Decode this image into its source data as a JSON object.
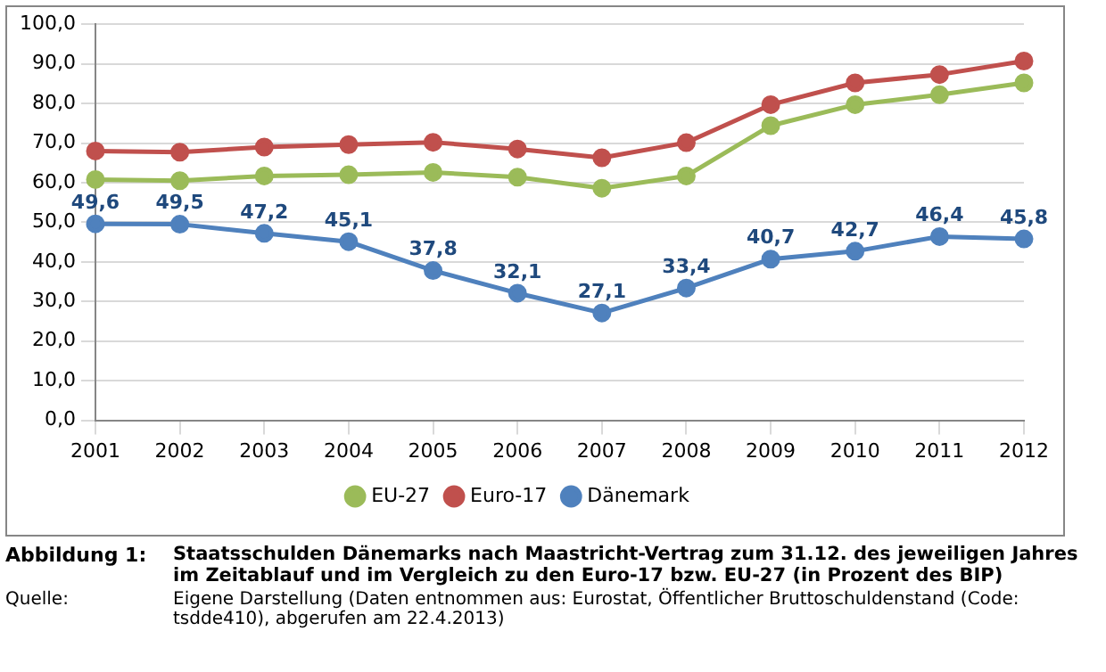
{
  "chart_data": {
    "type": "line",
    "title": "Staatsschulden Dänemarks nach Maastricht-Vertrag zum 31.12. des jeweiligen Jahres im Zeitablauf und im Vergleich zu den Euro-17 bzw. EU-27 (in Prozent des BIP)",
    "categories": [
      "2001",
      "2002",
      "2003",
      "2004",
      "2005",
      "2006",
      "2007",
      "2008",
      "2009",
      "2010",
      "2011",
      "2012"
    ],
    "series": [
      {
        "name": "EU-27",
        "color": "#9bbb59",
        "values": [
          60.8,
          60.5,
          61.7,
          62.0,
          62.6,
          61.4,
          58.6,
          61.7,
          74.4,
          79.7,
          82.2,
          85.2
        ]
      },
      {
        "name": "Euro-17",
        "color": "#c0504d",
        "values": [
          68.0,
          67.7,
          69.0,
          69.6,
          70.2,
          68.5,
          66.3,
          70.1,
          79.7,
          85.2,
          87.3,
          90.7
        ]
      },
      {
        "name": "Dänemark",
        "color": "#4f81bd",
        "values": [
          49.6,
          49.5,
          47.2,
          45.1,
          37.8,
          32.1,
          27.1,
          33.4,
          40.7,
          42.7,
          46.4,
          45.8
        ],
        "value_labels": [
          "49,6",
          "49,5",
          "47,2",
          "45,1",
          "37,8",
          "32,1",
          "27,1",
          "33,4",
          "40,7",
          "42,7",
          "46,4",
          "45,8"
        ]
      }
    ],
    "ylim": [
      0,
      100
    ],
    "yticks": [
      {
        "value": 0,
        "label": "0,0"
      },
      {
        "value": 10,
        "label": "10,0"
      },
      {
        "value": 20,
        "label": "20,0"
      },
      {
        "value": 30,
        "label": "30,0"
      },
      {
        "value": 40,
        "label": "40,0"
      },
      {
        "value": 50,
        "label": "50,0"
      },
      {
        "value": 60,
        "label": "60,0"
      },
      {
        "value": 70,
        "label": "70,0"
      },
      {
        "value": 80,
        "label": "80,0"
      },
      {
        "value": 90,
        "label": "90,0"
      },
      {
        "value": 100,
        "label": "100,0"
      }
    ],
    "grid": "y",
    "legend": "bottom",
    "marker": "circle",
    "line_style": "solid",
    "annotations": [
      "Abbildung 1:",
      "Quelle:",
      "Eigene Darstellung (Daten entnommen aus: Eurostat, Öffentlicher Bruttoschuldenstand (Code: tsdde410), abgerufen am 22.4.2013)"
    ]
  }
}
